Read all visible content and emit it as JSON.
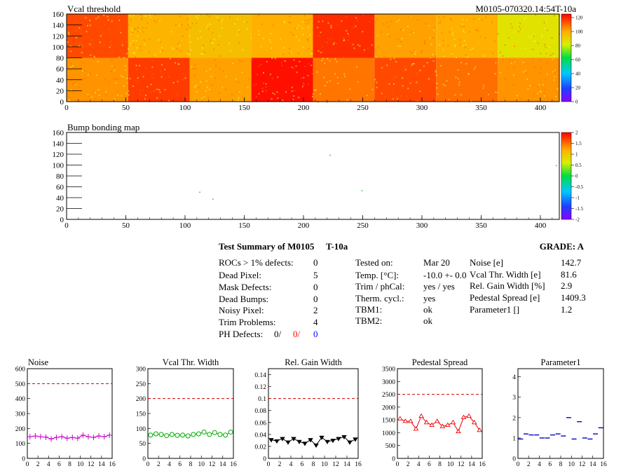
{
  "header": {
    "title": "Vcal threshold",
    "run_id": "M0105-070320.14:54T-10a"
  },
  "maps": [
    {
      "title": "Vcal threshold",
      "x_ticks": [
        0,
        50,
        100,
        150,
        200,
        250,
        300,
        350,
        400
      ],
      "y_ticks": [
        0,
        20,
        40,
        60,
        80,
        100,
        120,
        140,
        160
      ],
      "xlim": [
        0,
        416
      ],
      "ylim": [
        0,
        160
      ],
      "palette_labels": [
        "0",
        "20",
        "40",
        "60",
        "80",
        "100",
        "120"
      ],
      "roc_mean_bottom": [
        100,
        112,
        98,
        118,
        104,
        110,
        105,
        100
      ],
      "roc_mean_top": [
        110,
        95,
        92,
        96,
        114,
        98,
        96,
        82
      ]
    },
    {
      "title": "Bump bonding map",
      "x_ticks": [
        0,
        50,
        100,
        150,
        200,
        250,
        300,
        350,
        400
      ],
      "y_ticks": [
        0,
        20,
        40,
        60,
        80,
        100,
        120,
        140,
        160
      ],
      "xlim": [
        0,
        416
      ],
      "ylim": [
        0,
        160
      ],
      "palette_labels": [
        "-2",
        "-1.5",
        "-1",
        "-0.5",
        "0",
        "0.5",
        "1",
        "1.5",
        "2"
      ],
      "points": [
        [
          112,
          51
        ],
        [
          123,
          38
        ],
        [
          222,
          119
        ],
        [
          249,
          54
        ],
        [
          413,
          100
        ]
      ]
    }
  ],
  "summary": {
    "title": "Test Summary of M0105",
    "tag": "T-10a",
    "grade": "GRADE:  A",
    "defects": [
      {
        "label": "ROCs > 1% defects:",
        "value": "0"
      },
      {
        "label": "Dead Pixel:",
        "value": "5"
      },
      {
        "label": "Mask Defects:",
        "value": "0"
      },
      {
        "label": "Dead Bumps:",
        "value": "0"
      },
      {
        "label": "Noisy Pixel:",
        "value": "2"
      },
      {
        "label": "Trim Problems:",
        "value": "4"
      }
    ],
    "ph_defects": {
      "label": "PH Defects:",
      "v1": "0/",
      "v2": "0/",
      "v3": "0"
    },
    "conditions": [
      {
        "label": "Tested on:",
        "value": "Mar 20"
      },
      {
        "label": "Temp. [°C]:",
        "value": "-10.0 +- 0.0"
      },
      {
        "label": "Trim / phCal:",
        "value": "yes / yes"
      },
      {
        "label": "Therm. cycl.:",
        "value": "yes"
      },
      {
        "label": "TBM1:",
        "value": "ok"
      },
      {
        "label": "TBM2:",
        "value": "ok"
      }
    ],
    "results": [
      {
        "label": "Noise [e]",
        "value": "142.7"
      },
      {
        "label": "Vcal Thr. Width [e]",
        "value": "81.6"
      },
      {
        "label": "Rel. Gain Width [%]",
        "value": "2.9"
      },
      {
        "label": "Pedestal Spread [e]",
        "value": "1409.3"
      },
      {
        "label": "Parameter1 []",
        "value": "1.2"
      }
    ]
  },
  "colors": {
    "noise": "#cc00cc",
    "vcal": "#00aa00",
    "gain": "#000000",
    "pedestal": "#ee0000",
    "param": "#0000cc",
    "cut_line": "#cc0000",
    "ph_v2": "#ff0000",
    "ph_v3": "#0000ff"
  },
  "chart_data": [
    {
      "type": "line",
      "title": "Noise",
      "marker": "cross",
      "x": [
        0,
        1,
        2,
        3,
        4,
        5,
        6,
        7,
        8,
        9,
        10,
        11,
        12,
        13,
        14,
        15
      ],
      "values": [
        145,
        150,
        145,
        142,
        130,
        140,
        145,
        135,
        140,
        135,
        155,
        145,
        140,
        150,
        145,
        155
      ],
      "ylim": [
        0,
        600
      ],
      "y_ticks": [
        0,
        100,
        200,
        300,
        400,
        500,
        600
      ],
      "xlim": [
        0,
        16
      ],
      "x_ticks": [
        0,
        2,
        4,
        6,
        8,
        10,
        12,
        14,
        16
      ],
      "cut": 500,
      "color_key": "noise"
    },
    {
      "type": "line",
      "title": "Vcal Thr. Width",
      "marker": "circle",
      "x": [
        0,
        1,
        2,
        3,
        4,
        5,
        6,
        7,
        8,
        9,
        10,
        11,
        12,
        13,
        14,
        15
      ],
      "values": [
        78,
        82,
        80,
        76,
        80,
        77,
        78,
        75,
        80,
        82,
        88,
        80,
        86,
        80,
        78,
        88
      ],
      "ylim": [
        0,
        300
      ],
      "y_ticks": [
        0,
        50,
        100,
        150,
        200,
        250,
        300
      ],
      "xlim": [
        0,
        16
      ],
      "x_ticks": [
        0,
        2,
        4,
        6,
        8,
        10,
        12,
        14,
        16
      ],
      "cut": 200,
      "color_key": "vcal"
    },
    {
      "type": "line",
      "title": "Rel. Gain Width",
      "marker": "triangle-down",
      "x": [
        0,
        1,
        2,
        3,
        4,
        5,
        6,
        7,
        8,
        9,
        10,
        11,
        12,
        13,
        14,
        15
      ],
      "values": [
        0.031,
        0.029,
        0.033,
        0.027,
        0.033,
        0.028,
        0.025,
        0.031,
        0.022,
        0.035,
        0.028,
        0.03,
        0.033,
        0.036,
        0.027,
        0.032
      ],
      "ylim": [
        0,
        0.15
      ],
      "y_ticks": [
        0,
        0.02,
        0.04,
        0.06,
        0.08,
        0.1,
        0.12,
        0.14
      ],
      "xlim": [
        0,
        16
      ],
      "x_ticks": [
        0,
        2,
        4,
        6,
        8,
        10,
        12,
        14,
        16
      ],
      "cut": 0.1,
      "color_key": "gain"
    },
    {
      "type": "line",
      "title": "Pedestal Spread",
      "marker": "triangle-up",
      "x": [
        0,
        1,
        2,
        3,
        4,
        5,
        6,
        7,
        8,
        9,
        10,
        11,
        12,
        13,
        14,
        15
      ],
      "values": [
        1550,
        1450,
        1450,
        1150,
        1650,
        1400,
        1300,
        1450,
        1250,
        1300,
        1400,
        1050,
        1600,
        1650,
        1400,
        1100
      ],
      "ylim": [
        0,
        3500
      ],
      "y_ticks": [
        0,
        500,
        1000,
        1500,
        2000,
        2500,
        3000,
        3500
      ],
      "xlim": [
        0,
        16
      ],
      "x_ticks": [
        0,
        2,
        4,
        6,
        8,
        10,
        12,
        14,
        16
      ],
      "cut": 2500,
      "color_key": "pedestal"
    },
    {
      "type": "scatter",
      "title": "Parameter1",
      "marker": "hbar",
      "x": [
        0,
        1,
        2,
        3,
        4,
        5,
        6,
        7,
        8,
        9,
        10,
        11,
        12,
        13,
        14,
        15
      ],
      "values": [
        0.95,
        1.2,
        1.15,
        1.15,
        1.0,
        1.0,
        1.15,
        1.2,
        1.1,
        2.0,
        0.95,
        1.8,
        1.0,
        0.95,
        1.2,
        1.5
      ],
      "ylim": [
        0,
        4.4
      ],
      "y_ticks": [
        0,
        1,
        2,
        3,
        4
      ],
      "xlim": [
        0,
        16
      ],
      "x_ticks": [
        0,
        2,
        4,
        6,
        8,
        10,
        12,
        14,
        16
      ],
      "color_key": "param"
    }
  ]
}
